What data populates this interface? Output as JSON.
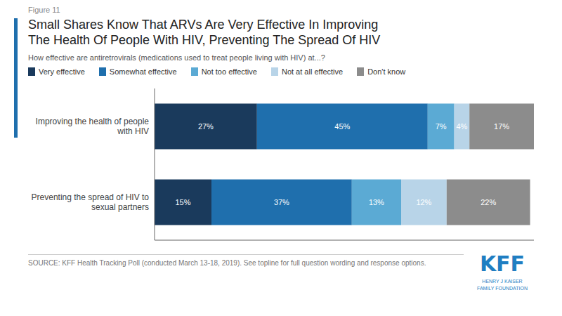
{
  "chart_data": {
    "type": "bar",
    "orientation": "horizontal",
    "stacked": true,
    "data_labels": true,
    "grid": false,
    "legend": "top",
    "tick_labels": "y",
    "title": "Small Shares Know That ARVs Are Very Effective In Improving\nThe Health Of People With HIV, Preventing The Spread Of HIV",
    "subtitle": "How effective are antiretrovirals (medications used to treat people living with HIV) at...?",
    "annotations": [
      "Figure 11",
      "SOURCE: KFF Health Tracking Poll (conducted March 13-18, 2019). See topline for full question wording and response options.",
      "KFF",
      "HENRY J KAISER\nFAMILY FOUNDATION"
    ],
    "categories": [
      "Improving the health of people\nwith HIV",
      "Preventing the spread of HIV to\nsexual partners"
    ],
    "series": [
      {
        "name": "Very effective",
        "color": "#1a3a5c",
        "values": [
          27,
          15
        ],
        "value_labels": [
          "27%",
          "15%"
        ]
      },
      {
        "name": "Somewhat effective",
        "color": "#1f6fad",
        "values": [
          45,
          37
        ],
        "value_labels": [
          "45%",
          "37%"
        ]
      },
      {
        "name": "Not too effective",
        "color": "#5baad4",
        "values": [
          7,
          13
        ],
        "value_labels": [
          "7%",
          "13%"
        ]
      },
      {
        "name": "Not at all effective",
        "color": "#b8d4e8",
        "values": [
          4,
          12
        ],
        "value_labels": [
          "4%",
          "12%"
        ]
      },
      {
        "name": "Don't know",
        "color": "#8c8c8c",
        "values": [
          17,
          22
        ],
        "value_labels": [
          "17%",
          "22%"
        ]
      }
    ],
    "xlim": [
      0,
      100
    ]
  }
}
